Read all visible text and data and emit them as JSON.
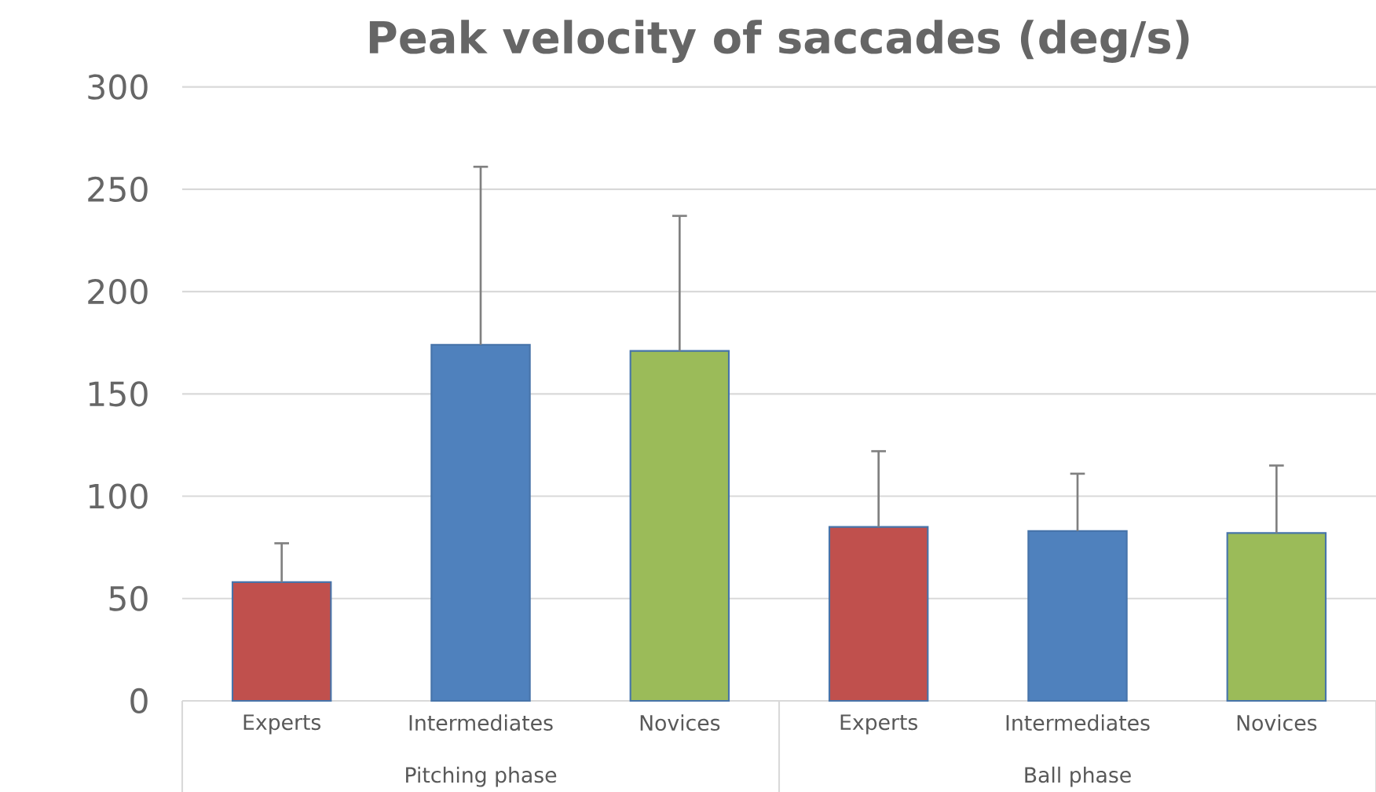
{
  "chart_data": {
    "type": "bar",
    "title": "Peak velocity of saccades (deg/s)",
    "categories": [
      "Experts",
      "Intermediates",
      "Novices",
      "Experts",
      "Intermediates",
      "Novices"
    ],
    "values": [
      58,
      174,
      171,
      85,
      83,
      82
    ],
    "colors": [
      "#c0504d",
      "#4f81bd",
      "#9bbb59",
      "#c0504d",
      "#4f81bd",
      "#9bbb59"
    ],
    "errors": [
      [
        58,
        77
      ],
      [
        174,
        261
      ],
      [
        171,
        237
      ],
      [
        85,
        122
      ],
      [
        83,
        111
      ],
      [
        82,
        115
      ]
    ],
    "annotations": [
      "Pitching phase",
      "Ball phase"
    ],
    "ylim": [
      0,
      300
    ],
    "yticks": [
      0,
      50,
      100,
      150,
      200,
      250,
      300
    ],
    "grid": "y"
  }
}
